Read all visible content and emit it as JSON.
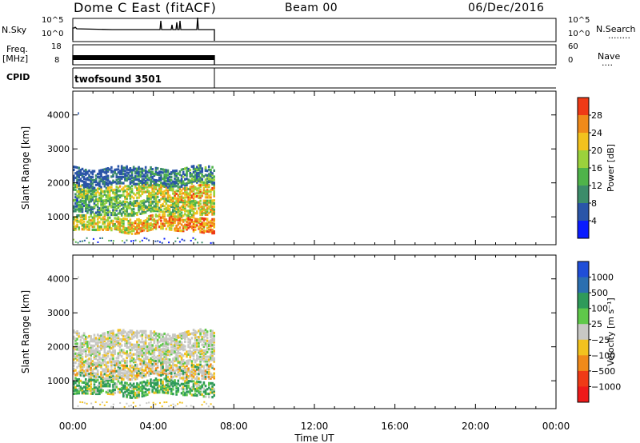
{
  "header": {
    "station": "Dome C East (fitACF)",
    "beam": "Beam 00",
    "date": "06/Dec/2016"
  },
  "panels": {
    "nsky": {
      "label": "N.Sky",
      "right_label": "N.Search",
      "left_ticks": [
        "10^5",
        "10^0"
      ],
      "right_ticks": [
        "10^5",
        "10^0"
      ],
      "right_dots": "........"
    },
    "freq": {
      "label": "Freq.",
      "unit": "[MHz]",
      "left_ticks": [
        "18",
        "8"
      ],
      "right_ticks": [
        "60",
        "0"
      ],
      "right_label": "Nave",
      "right_dots": "...."
    },
    "cpid": {
      "label": "CPID",
      "value": "twofsound 3501"
    }
  },
  "chart_data": [
    {
      "type": "heatmap",
      "name": "power",
      "ylabel": "Slant Range [km]",
      "yticks": [
        "1000",
        "2000",
        "3000",
        "4000"
      ],
      "ylim": [
        180,
        4700
      ],
      "colorbar_label": "Power [dB]",
      "colorbar_ticks": [
        "4",
        "8",
        "12",
        "16",
        "20",
        "24",
        "28"
      ],
      "colorbar_colors": [
        "#0a1cff",
        "#2a55a8",
        "#3c8c6a",
        "#4fb34a",
        "#9bd23c",
        "#f2c21e",
        "#f08a1a",
        "#ef3a16"
      ],
      "data_coverage_hours": [
        0.0,
        7.0
      ],
      "echo_bands_km": [
        [
          550,
          1000
        ],
        [
          1050,
          1500
        ],
        [
          1500,
          1900
        ],
        [
          1900,
          2400
        ]
      ]
    },
    {
      "type": "heatmap",
      "name": "velocity",
      "ylabel": "Slant Range [km]",
      "yticks": [
        "1000",
        "2000",
        "3000",
        "4000"
      ],
      "ylim": [
        180,
        4700
      ],
      "colorbar_label": "Velocity [m s⁻¹]",
      "colorbar_ticks": [
        "1000",
        "500",
        "100",
        "25",
        "−25",
        "−100",
        "−500",
        "−1000"
      ],
      "colorbar_colors": [
        "#1f4ed8",
        "#2b6fb0",
        "#2f9a5a",
        "#5fc84a",
        "#c8c8c4",
        "#f2c21e",
        "#f08a1a",
        "#ef3a16",
        "#ee1a1a"
      ],
      "data_coverage_hours": [
        0.0,
        7.0
      ],
      "echo_bands_km": [
        [
          550,
          1000
        ],
        [
          1050,
          1500
        ],
        [
          1500,
          1900
        ],
        [
          1900,
          2400
        ]
      ]
    }
  ],
  "xaxis": {
    "label": "Time UT",
    "ticks": [
      "00:00",
      "04:00",
      "08:00",
      "12:00",
      "16:00",
      "20:00",
      "00:00"
    ]
  }
}
